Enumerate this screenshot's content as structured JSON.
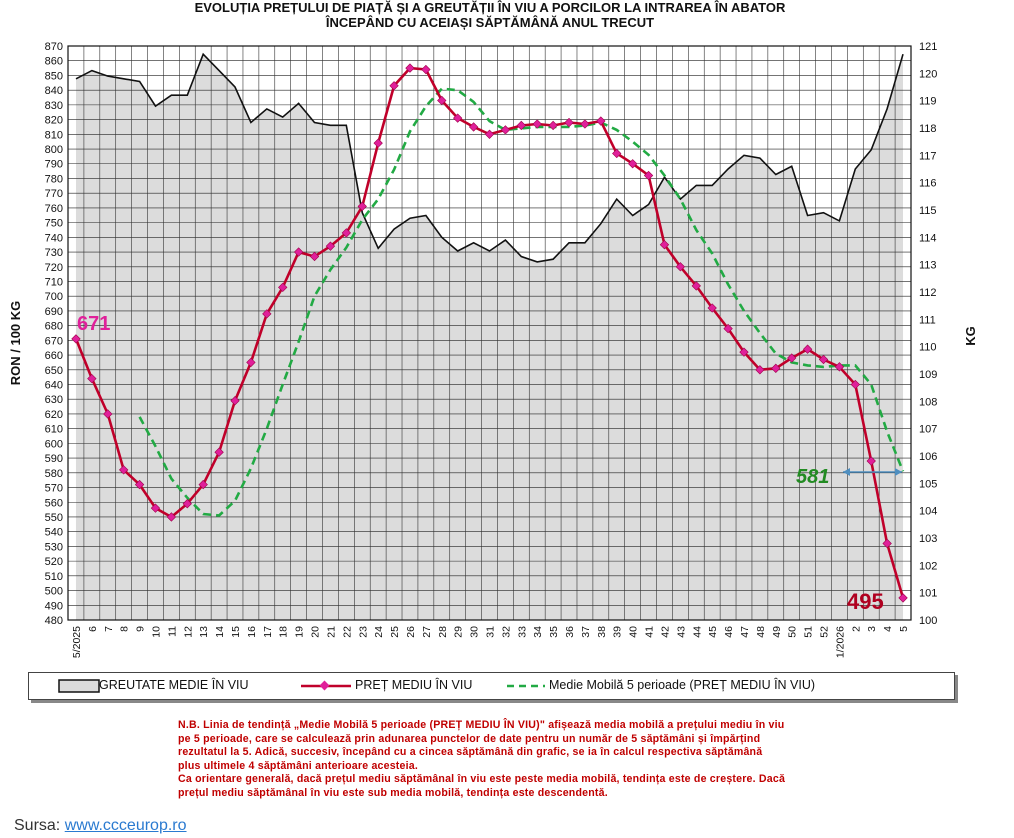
{
  "title_lines": [
    "EVOLUȚIA PREȚULUI DE PIAȚĂ ȘI A GREUTĂȚII  ÎN VIU A PORCILOR LA INTRAREA  ÎN ABATOR",
    "ÎNCEPÂND  CU ACEIAȘI SĂPTĂMÂNĂ ANUL TRECUT"
  ],
  "chart_data": {
    "type": "line",
    "ylabel": "RON / 100 KG",
    "y2label": "KG",
    "ylim": [
      480,
      870
    ],
    "y2lim": [
      100,
      121
    ],
    "categories": [
      "5/2025",
      "6",
      "7",
      "8",
      "9",
      "10",
      "11",
      "12",
      "13",
      "14",
      "15",
      "16",
      "17",
      "18",
      "19",
      "20",
      "21",
      "22",
      "23",
      "24",
      "25",
      "26",
      "27",
      "28",
      "29",
      "30",
      "31",
      "32",
      "33",
      "34",
      "35",
      "36",
      "37",
      "38",
      "39",
      "40",
      "41",
      "42",
      "43",
      "44",
      "45",
      "46",
      "47",
      "48",
      "49",
      "50",
      "51",
      "52",
      "1/2026",
      "2",
      "3",
      "4",
      "5"
    ],
    "series": [
      {
        "name": "GREUTATE MEDIE ÎN VIU",
        "axis": "right",
        "style": "area",
        "color": "#111111",
        "fill": "#dcdcdc",
        "values": [
          119.8,
          120.1,
          119.9,
          119.8,
          119.7,
          118.8,
          119.2,
          119.2,
          120.7,
          120.1,
          119.5,
          118.2,
          118.7,
          118.4,
          118.9,
          118.2,
          118.1,
          118.1,
          114.9,
          113.6,
          114.3,
          114.7,
          114.8,
          114.0,
          113.5,
          113.8,
          113.5,
          113.9,
          113.3,
          113.1,
          113.2,
          113.8,
          113.8,
          114.5,
          115.4,
          114.8,
          115.2,
          116.2,
          115.4,
          115.9,
          115.9,
          116.5,
          117.0,
          116.9,
          116.3,
          116.6,
          114.8,
          114.9,
          114.6,
          116.5,
          117.2,
          118.7,
          120.7
        ]
      },
      {
        "name": "PREȚ MEDIU ÎN VIU",
        "axis": "left",
        "style": "line-markers",
        "color": "#c0002a",
        "values": [
          671,
          644,
          620,
          582,
          572,
          556,
          550,
          559,
          572,
          594,
          629,
          655,
          688,
          706,
          730,
          727,
          734,
          743,
          761,
          804,
          843,
          855,
          854,
          833,
          821,
          815,
          810,
          813,
          816,
          817,
          816,
          818,
          817,
          819,
          797,
          790,
          782,
          735,
          720,
          707,
          692,
          678,
          662,
          650,
          651,
          658,
          664,
          657,
          652,
          640,
          588,
          532,
          495
        ]
      },
      {
        "name": "Medie Mobilă 5 perioade  (PREȚ MEDIU ÎN VIU)",
        "axis": "left",
        "style": "dashed",
        "color": "#22aa44",
        "values": [
          null,
          null,
          null,
          null,
          618,
          598,
          576,
          563,
          552,
          551,
          561,
          583,
          610,
          640,
          669,
          700,
          718,
          733,
          752,
          766,
          786,
          812,
          829,
          841,
          840,
          832,
          819,
          813,
          814,
          815,
          815,
          815,
          816,
          818,
          813,
          805,
          796,
          782,
          766,
          745,
          729,
          708,
          690,
          675,
          661,
          655,
          653,
          652,
          653,
          653,
          640,
          608,
          581
        ]
      }
    ],
    "annotations": [
      {
        "text": "671",
        "color": "#e0209a"
      },
      {
        "text": "581",
        "color": "#228b22"
      },
      {
        "text": "495",
        "color": "#b00020"
      }
    ],
    "grid": true,
    "legend": "bottom"
  },
  "note_lines": [
    "N.B. Linia de tendință „Medie Mobilă 5 perioade (PREȚ MEDIU ÎN VIU)\" afișează media mobilă a prețului mediu în viu",
    "pe 5 perioade, care se calculează prin adunarea punctelor de date pentru un număr de 5 săptămâni și împărțind",
    "rezultatul la 5. Adică, succesiv, începând cu a cincea săptămână din grafic, se ia în calcul respectiva săptămână",
    "plus ultimele 4 săptămâni anterioare acesteia.",
    "Ca orientare generală, dacă prețul mediu săptămânal în viu este peste media mobilă, tendința este de creștere. Dacă",
    "prețul mediu săptămânal în viu este sub media mobilă, tendința este descendentă."
  ],
  "source": {
    "label": "Sursa:",
    "link": "www.ccceurop.ro"
  }
}
